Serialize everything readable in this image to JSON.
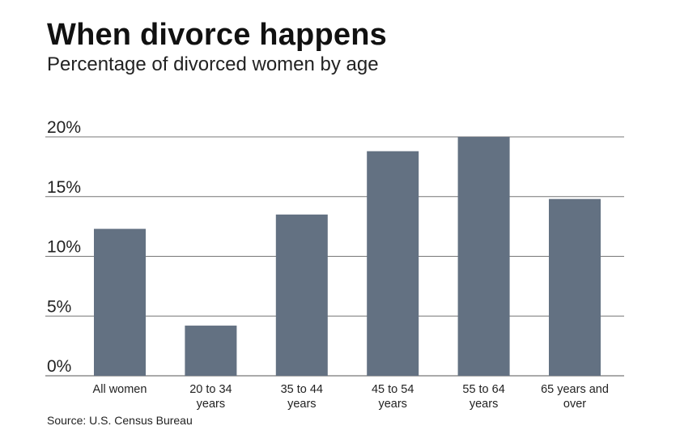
{
  "chart_data": {
    "type": "bar",
    "title": "When divorce happens",
    "subtitle": "Percentage of divorced women by age",
    "categories": [
      [
        "All women"
      ],
      [
        "20 to 34",
        "years"
      ],
      [
        "35 to 44",
        "years"
      ],
      [
        "45 to 54",
        "years"
      ],
      [
        "55 to 64",
        "years"
      ],
      [
        "65 years and",
        "over"
      ]
    ],
    "values": [
      12.3,
      4.2,
      13.5,
      18.8,
      20.0,
      14.8
    ],
    "yticks": [
      "0%",
      "5%",
      "10%",
      "15%",
      "20%"
    ],
    "ytick_values": [
      0,
      5,
      10,
      15,
      20
    ],
    "ylim": [
      0,
      20
    ],
    "grid": true,
    "bar_color": "#637182",
    "grid_color": "#777777",
    "source": "Source: U.S. Census Bureau"
  }
}
